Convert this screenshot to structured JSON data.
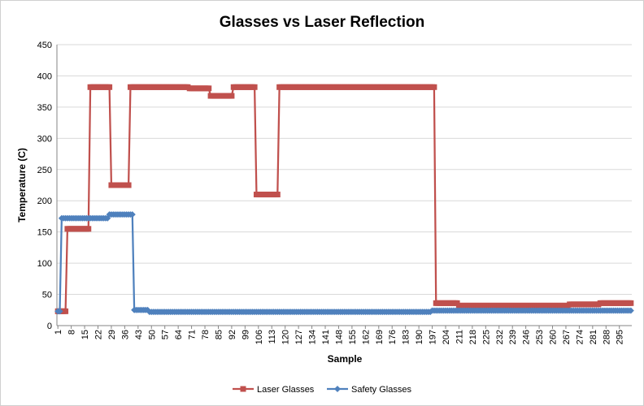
{
  "chart_data": {
    "type": "line",
    "title": "Glasses vs Laser Reflection",
    "xlabel": "Sample",
    "ylabel": "Temperature (C)",
    "ylim": [
      0,
      450
    ],
    "yticks": [
      0,
      50,
      100,
      150,
      200,
      250,
      300,
      350,
      400,
      450
    ],
    "xlim": [
      1,
      301
    ],
    "xtick_labels": [
      "1",
      "8",
      "15",
      "22",
      "29",
      "36",
      "43",
      "50",
      "57",
      "64",
      "71",
      "78",
      "85",
      "92",
      "99",
      "106",
      "113",
      "120",
      "127",
      "134",
      "141",
      "148",
      "155",
      "162",
      "169",
      "176",
      "183",
      "190",
      "197",
      "204",
      "211",
      "218",
      "225",
      "232",
      "239",
      "246",
      "253",
      "260",
      "267",
      "274",
      "281",
      "288",
      "295"
    ],
    "grid": "horizontal",
    "legend_position": "bottom",
    "series": [
      {
        "name": "Laser Glasses",
        "color": "#C0504D",
        "marker": "square",
        "segments": [
          {
            "x_start": 1,
            "x_end": 5,
            "y": 23
          },
          {
            "x_start": 6,
            "x_end": 17,
            "y": 155
          },
          {
            "x_start": 18,
            "x_end": 28,
            "y": 382
          },
          {
            "x_start": 29,
            "x_end": 38,
            "y": 225
          },
          {
            "x_start": 39,
            "x_end": 69,
            "y": 382
          },
          {
            "x_start": 70,
            "x_end": 80,
            "y": 380
          },
          {
            "x_start": 81,
            "x_end": 92,
            "y": 368
          },
          {
            "x_start": 93,
            "x_end": 104,
            "y": 382
          },
          {
            "x_start": 105,
            "x_end": 116,
            "y": 210
          },
          {
            "x_start": 117,
            "x_end": 198,
            "y": 382
          },
          {
            "x_start": 199,
            "x_end": 210,
            "y": 36
          },
          {
            "x_start": 211,
            "x_end": 268,
            "y": 32
          },
          {
            "x_start": 269,
            "x_end": 284,
            "y": 34
          },
          {
            "x_start": 285,
            "x_end": 301,
            "y": 36
          }
        ]
      },
      {
        "name": "Safety Glasses",
        "color": "#4F81BD",
        "marker": "diamond",
        "segments": [
          {
            "x_start": 1,
            "x_end": 2,
            "y": 23
          },
          {
            "x_start": 3,
            "x_end": 27,
            "y": 172
          },
          {
            "x_start": 28,
            "x_end": 40,
            "y": 178
          },
          {
            "x_start": 41,
            "x_end": 48,
            "y": 25
          },
          {
            "x_start": 49,
            "x_end": 196,
            "y": 22
          },
          {
            "x_start": 197,
            "x_end": 301,
            "y": 24
          }
        ]
      }
    ]
  }
}
